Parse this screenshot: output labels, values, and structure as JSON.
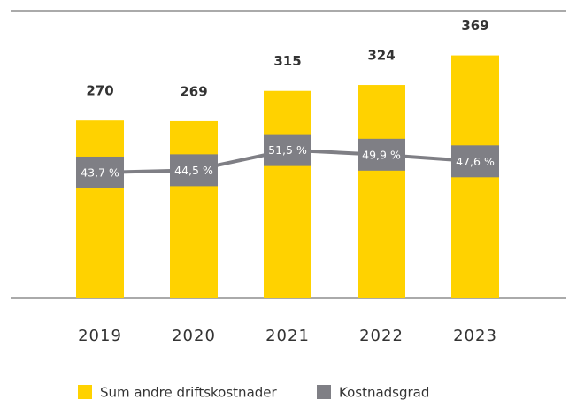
{
  "chart_data": {
    "type": "bar",
    "categories": [
      "2019",
      "2020",
      "2021",
      "2022",
      "2023"
    ],
    "series": [
      {
        "name": "Sum andre driftskostnader",
        "color": "#ffd200",
        "values": [
          270,
          269,
          315,
          324,
          369
        ]
      },
      {
        "name": "Kostnadsgrad",
        "type": "line",
        "axis": "y2",
        "color": "#7f7f85",
        "values": [
          43.7,
          44.5,
          51.5,
          49.9,
          47.6
        ],
        "value_labels": [
          "43,7 %",
          "44,5 %",
          "51,5 %",
          "49,9 %",
          "47,6 %"
        ]
      }
    ],
    "ylim": [
      0,
      437
    ],
    "y2lim": [
      0,
      100
    ],
    "legend": "bottom"
  }
}
